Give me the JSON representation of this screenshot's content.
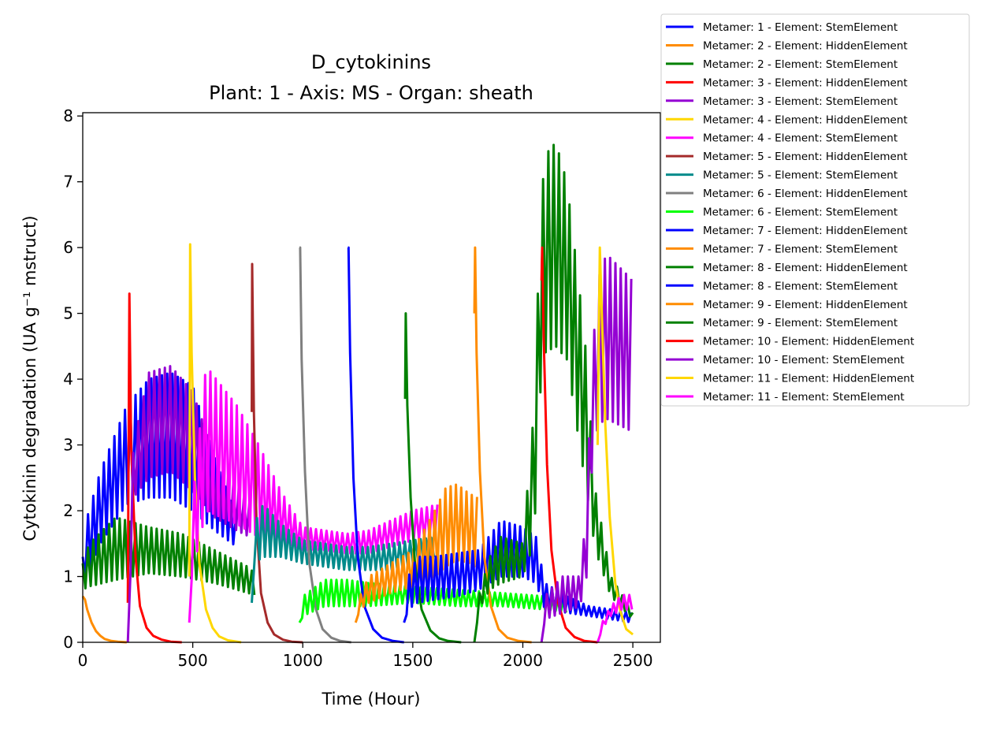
{
  "chart_data": {
    "type": "line",
    "title": "D_cytokinins",
    "subtitle": "Plant: 1 - Axis: MS - Organ: sheath",
    "xlabel": "Time (Hour)",
    "ylabel": "Cytokinin degradation (UA g⁻¹ mstruct)",
    "xlim": [
      0,
      2625
    ],
    "ylim": [
      0,
      8.05
    ],
    "xticks": [
      0,
      500,
      1000,
      1500,
      2000,
      2500
    ],
    "yticks": [
      0,
      1,
      2,
      3,
      4,
      5,
      6,
      7,
      8
    ],
    "grid": false,
    "legend_position": "outside-top-right",
    "series": [
      {
        "name": "Metamer: 1 - Element: StemElement",
        "color": "#0000ff",
        "kind": "osc",
        "x": [
          0,
          20,
          80,
          200,
          300,
          400,
          500,
          600,
          700
        ],
        "hi": [
          1.3,
          1.9,
          2.6,
          3.6,
          4.0,
          4.1,
          3.9,
          2.8,
          1.9
        ],
        "lo": [
          1.0,
          1.0,
          1.5,
          2.1,
          2.2,
          2.2,
          2.0,
          1.7,
          1.45
        ]
      },
      {
        "name": "Metamer: 2 - Element: HiddenElement",
        "color": "#ff8c00",
        "kind": "decay",
        "x": [
          0,
          10,
          20,
          40,
          60,
          80,
          100,
          130,
          160,
          200
        ],
        "y": [
          0.7,
          0.65,
          0.5,
          0.3,
          0.17,
          0.1,
          0.05,
          0.02,
          0.01,
          0
        ]
      },
      {
        "name": "Metamer: 2 - Element: StemElement",
        "color": "#008000",
        "kind": "osc",
        "x": [
          0,
          30,
          150,
          300,
          450,
          600,
          750,
          780
        ],
        "hi": [
          1.2,
          1.5,
          1.9,
          1.75,
          1.65,
          1.4,
          1.15,
          1.05
        ],
        "lo": [
          0.8,
          0.85,
          0.95,
          1.05,
          1.0,
          0.9,
          0.75,
          0.72
        ]
      },
      {
        "name": "Metamer: 3 - Element: HiddenElement",
        "color": "#ff0000",
        "kind": "decay",
        "x": [
          205,
          212,
          220,
          240,
          260,
          290,
          320,
          360,
          400,
          450
        ],
        "y": [
          0.6,
          5.3,
          3.0,
          1.3,
          0.55,
          0.22,
          0.1,
          0.04,
          0.01,
          0
        ]
      },
      {
        "name": "Metamer: 3 - Element: StemElement",
        "color": "#9400d3",
        "kind": "osc",
        "x": [
          205,
          230,
          300,
          400,
          500,
          600,
          700,
          760
        ],
        "hi": [
          0.0,
          3.0,
          4.1,
          4.2,
          3.8,
          2.8,
          2.4,
          2.1
        ],
        "lo": [
          0.0,
          2.2,
          2.5,
          2.6,
          2.3,
          1.9,
          1.7,
          1.6
        ]
      },
      {
        "name": "Metamer: 4 - Element: HiddenElement",
        "color": "#ffd700",
        "kind": "decay",
        "x": [
          484,
          488,
          495,
          510,
          530,
          560,
          590,
          620,
          660,
          720
        ],
        "y": [
          1.0,
          6.05,
          4.4,
          2.5,
          1.2,
          0.5,
          0.22,
          0.09,
          0.03,
          0
        ]
      },
      {
        "name": "Metamer: 4 - Element: StemElement",
        "color": "#ff00ff",
        "kind": "osc",
        "x": [
          484,
          495,
          560,
          700,
          800,
          900,
          1000,
          1100,
          1200,
          1300,
          1400,
          1500,
          1620
        ],
        "hi": [
          0.3,
          2.0,
          4.2,
          3.6,
          3.0,
          2.3,
          1.75,
          1.7,
          1.65,
          1.7,
          1.85,
          2.0,
          2.1
        ],
        "lo": [
          0.3,
          1.0,
          2.0,
          1.8,
          1.6,
          1.55,
          1.4,
          1.4,
          1.35,
          1.35,
          1.45,
          1.55,
          1.6
        ]
      },
      {
        "name": "Metamer: 5 - Element: HiddenElement",
        "color": "#a52a2a",
        "kind": "decay",
        "x": [
          768,
          770,
          778,
          790,
          810,
          840,
          870,
          910,
          950,
          1000
        ],
        "y": [
          3.5,
          5.75,
          3.5,
          1.8,
          0.75,
          0.3,
          0.12,
          0.04,
          0.01,
          0
        ]
      },
      {
        "name": "Metamer: 5 - Element: StemElement",
        "color": "#008b8b",
        "kind": "osc",
        "x": [
          768,
          780,
          820,
          900,
          1000,
          1100,
          1200,
          1300,
          1400,
          1500,
          1600
        ],
        "hi": [
          0.6,
          1.8,
          2.1,
          1.8,
          1.55,
          1.5,
          1.45,
          1.45,
          1.5,
          1.55,
          1.6
        ],
        "lo": [
          0.6,
          1.2,
          1.3,
          1.3,
          1.2,
          1.15,
          1.1,
          1.1,
          1.1,
          1.2,
          1.3
        ]
      },
      {
        "name": "Metamer: 6 - Element: HiddenElement",
        "color": "#808080",
        "kind": "decay",
        "x": [
          985,
          988,
          995,
          1010,
          1030,
          1060,
          1090,
          1130,
          1170,
          1220
        ],
        "y": [
          6.0,
          6.0,
          4.3,
          2.6,
          1.2,
          0.5,
          0.2,
          0.07,
          0.02,
          0
        ]
      },
      {
        "name": "Metamer: 6 - Element: StemElement",
        "color": "#00ff00",
        "kind": "osc",
        "x": [
          985,
          1000,
          1100,
          1200,
          1300,
          1500,
          1700,
          1900,
          2100,
          2200
        ],
        "hi": [
          0.3,
          0.7,
          0.95,
          0.95,
          0.9,
          0.85,
          0.8,
          0.75,
          0.7,
          0.65
        ],
        "lo": [
          0.25,
          0.4,
          0.55,
          0.55,
          0.55,
          0.6,
          0.55,
          0.55,
          0.5,
          0.45
        ]
      },
      {
        "name": "Metamer: 7 - Element: HiddenElement",
        "color": "#0000ff",
        "kind": "decay",
        "x": [
          1205,
          1208,
          1215,
          1230,
          1250,
          1280,
          1320,
          1360,
          1410,
          1460
        ],
        "y": [
          6.0,
          6.0,
          4.4,
          2.5,
          1.3,
          0.55,
          0.2,
          0.07,
          0.02,
          0
        ]
      },
      {
        "name": "Metamer: 7 - Element: StemElement",
        "color": "#ff8c00",
        "kind": "osc",
        "x": [
          1240,
          1260,
          1300,
          1400,
          1500,
          1600,
          1650,
          1700,
          1760,
          1800
        ],
        "hi": [
          0.3,
          0.7,
          1.0,
          1.2,
          1.4,
          2.0,
          2.35,
          2.4,
          2.25,
          2.2
        ],
        "lo": [
          0.3,
          0.5,
          0.6,
          0.75,
          0.85,
          1.0,
          1.15,
          1.25,
          1.2,
          1.1
        ]
      },
      {
        "name": "Metamer: 8 - Element: HiddenElement",
        "color": "#008000",
        "kind": "decay",
        "x": [
          1465,
          1468,
          1475,
          1490,
          1510,
          1540,
          1580,
          1620,
          1660,
          1720
        ],
        "y": [
          3.7,
          5.0,
          3.6,
          2.2,
          1.2,
          0.5,
          0.18,
          0.06,
          0.02,
          0
        ]
      },
      {
        "name": "Metamer: 8 - Element: StemElement",
        "color": "#0000ff",
        "kind": "osc",
        "x": [
          1460,
          1480,
          1520,
          1600,
          1700,
          1800,
          1900,
          2000,
          2060,
          2100,
          2200,
          2300,
          2400,
          2500
        ],
        "hi": [
          0.3,
          1.0,
          1.3,
          1.3,
          1.35,
          1.4,
          1.85,
          1.75,
          1.6,
          0.9,
          0.7,
          0.55,
          0.5,
          0.45
        ],
        "lo": [
          0.3,
          0.5,
          0.6,
          0.65,
          0.7,
          0.8,
          1.0,
          1.0,
          0.9,
          0.5,
          0.45,
          0.4,
          0.35,
          0.3
        ]
      },
      {
        "name": "Metamer: 9 - Element: HiddenElement",
        "color": "#ff8c00",
        "kind": "decay",
        "x": [
          1780,
          1783,
          1790,
          1805,
          1825,
          1855,
          1890,
          1930,
          1980,
          2040
        ],
        "y": [
          5.0,
          6.0,
          4.4,
          2.6,
          1.3,
          0.55,
          0.2,
          0.07,
          0.02,
          0
        ]
      },
      {
        "name": "Metamer: 9 - Element: StemElement",
        "color": "#008000",
        "kind": "osc",
        "x": [
          1780,
          1800,
          1850,
          1900,
          2000,
          2050,
          2080,
          2100,
          2150,
          2200,
          2280,
          2330,
          2400,
          2500
        ],
        "hi": [
          0.0,
          0.7,
          1.3,
          1.6,
          1.5,
          3.5,
          6.5,
          7.4,
          7.6,
          7.0,
          4.7,
          2.3,
          1.0,
          0.45
        ],
        "lo": [
          0.0,
          0.5,
          0.8,
          0.9,
          1.0,
          1.5,
          3.8,
          4.4,
          4.5,
          4.3,
          2.5,
          1.4,
          0.7,
          0.35
        ]
      },
      {
        "name": "Metamer: 10 - Element: HiddenElement",
        "color": "#ff0000",
        "kind": "decay",
        "x": [
          2085,
          2088,
          2095,
          2110,
          2130,
          2160,
          2195,
          2235,
          2280,
          2340
        ],
        "y": [
          5.5,
          6.0,
          4.6,
          2.7,
          1.4,
          0.6,
          0.22,
          0.08,
          0.02,
          0
        ]
      },
      {
        "name": "Metamer: 10 - Element: StemElement",
        "color": "#9400d3",
        "kind": "osc",
        "x": [
          2085,
          2100,
          2180,
          2260,
          2290,
          2310,
          2340,
          2380,
          2440,
          2500
        ],
        "hi": [
          0.0,
          0.7,
          1.0,
          1.0,
          2.0,
          4.0,
          5.5,
          5.9,
          5.7,
          5.5
        ],
        "lo": [
          0.0,
          0.35,
          0.45,
          0.55,
          1.0,
          2.5,
          3.3,
          3.4,
          3.3,
          3.2
        ]
      },
      {
        "name": "Metamer: 11 - Element: HiddenElement",
        "color": "#ffd700",
        "kind": "decay",
        "x": [
          2340,
          2350,
          2360,
          2375,
          2395,
          2420,
          2445,
          2470,
          2500
        ],
        "y": [
          3.0,
          6.0,
          4.9,
          3.3,
          1.9,
          0.9,
          0.45,
          0.2,
          0.12
        ]
      },
      {
        "name": "Metamer: 11 - Element: StemElement",
        "color": "#ff00ff",
        "kind": "osc",
        "x": [
          2340,
          2360,
          2400,
          2450,
          2500
        ],
        "hi": [
          0.0,
          0.3,
          0.55,
          0.72,
          0.72
        ],
        "lo": [
          0.0,
          0.2,
          0.4,
          0.5,
          0.5
        ]
      }
    ]
  }
}
